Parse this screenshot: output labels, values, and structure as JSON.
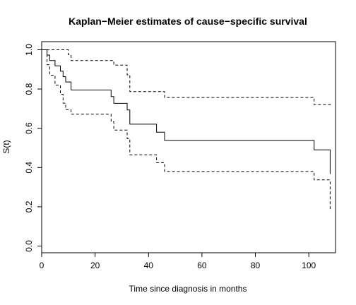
{
  "chart_data": {
    "type": "line",
    "title": "Kaplan−Meier estimates of cause−specific survival",
    "xlabel": "Time since diagnosis in months",
    "ylabel": "S(t)",
    "xlim": [
      0,
      110
    ],
    "ylim": [
      0,
      1
    ],
    "xticks": [
      0,
      20,
      40,
      60,
      80,
      100
    ],
    "yticks": [
      0.0,
      0.2,
      0.4,
      0.6,
      0.8,
      1.0
    ],
    "xtick_labels": [
      "0",
      "20",
      "40",
      "60",
      "80",
      "100"
    ],
    "ytick_labels": [
      "0.0",
      "0.2",
      "0.4",
      "0.6",
      "0.8",
      "1.0"
    ],
    "grid": false,
    "legend": "none",
    "series": [
      {
        "style": "solid",
        "color": "#000000",
        "x": [
          0,
          2,
          3,
          5,
          7,
          8,
          9,
          11,
          22,
          26,
          27,
          32,
          33,
          43,
          46,
          102,
          108
        ],
        "y": [
          1.0,
          0.973,
          0.945,
          0.918,
          0.891,
          0.863,
          0.836,
          0.795,
          0.795,
          0.762,
          0.727,
          0.693,
          0.621,
          0.58,
          0.538,
          0.49,
          0.367
        ]
      },
      {
        "style": "dashed",
        "color": "#000000",
        "x": [
          0,
          8,
          10,
          11,
          22,
          27,
          32,
          33,
          43,
          46,
          102,
          108
        ],
        "y": [
          1.0,
          1.0,
          0.975,
          0.945,
          0.945,
          0.922,
          0.872,
          0.787,
          0.787,
          0.757,
          0.721,
          0.727
        ]
      },
      {
        "style": "dashed",
        "color": "#000000",
        "x": [
          0,
          2,
          3,
          5,
          7,
          8,
          9,
          11,
          22,
          26,
          27,
          32,
          33,
          43,
          46,
          102,
          108
        ],
        "y": [
          1.0,
          0.924,
          0.87,
          0.82,
          0.773,
          0.728,
          0.695,
          0.672,
          0.672,
          0.633,
          0.591,
          0.547,
          0.465,
          0.425,
          0.38,
          0.337,
          0.186
        ]
      }
    ]
  }
}
